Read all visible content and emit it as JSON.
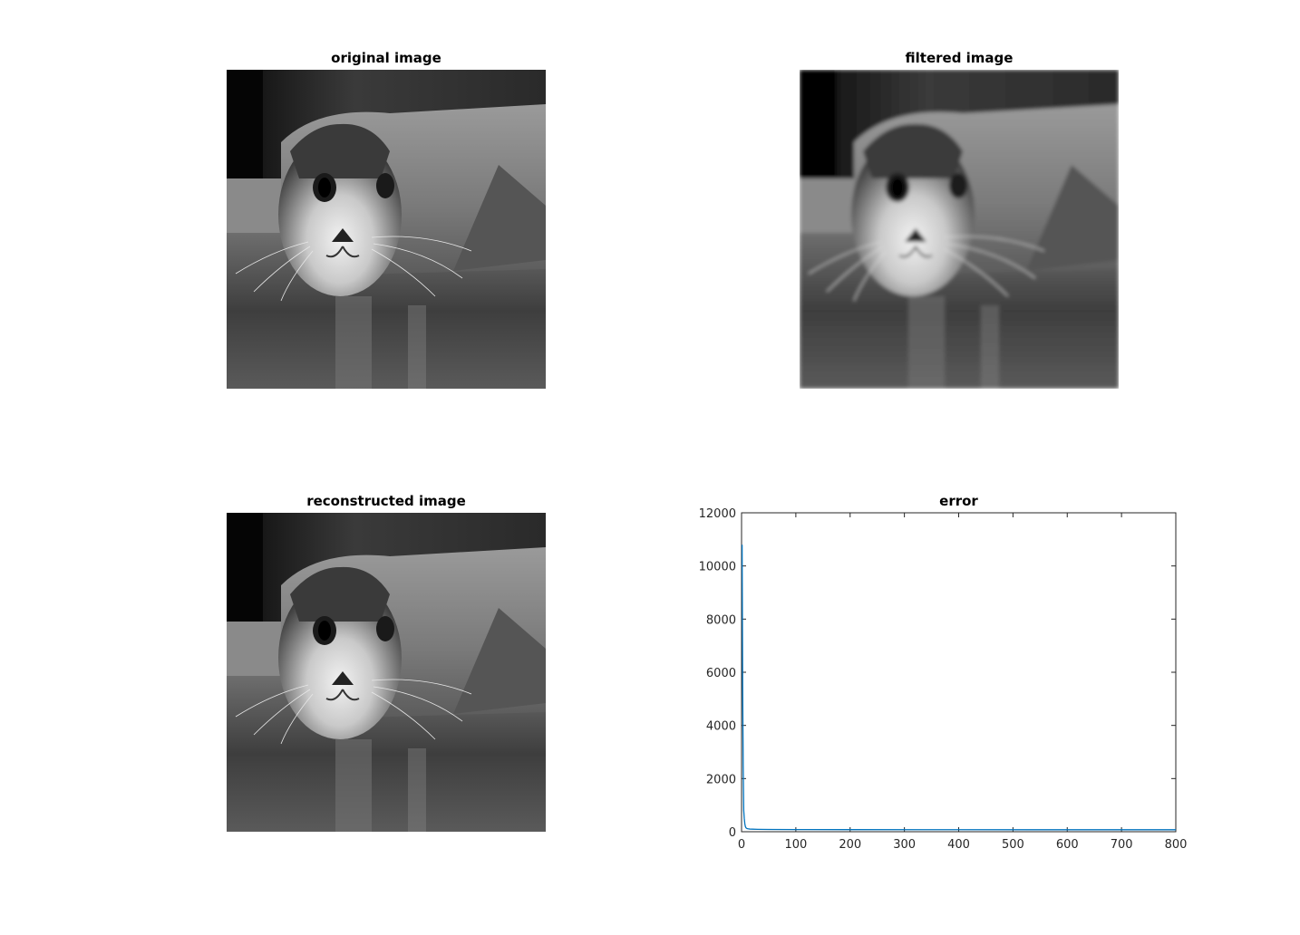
{
  "panels": {
    "original": {
      "title": "original image"
    },
    "filtered": {
      "title": "filtered image"
    },
    "reconstructed": {
      "title": "reconstructed image"
    },
    "error": {
      "title": "error"
    }
  },
  "chart_data": [
    {
      "type": "line",
      "title": "error",
      "xlabel": "",
      "ylabel": "",
      "xlim": [
        0,
        800
      ],
      "ylim": [
        0,
        12000
      ],
      "xticks": [
        0,
        100,
        200,
        300,
        400,
        500,
        600,
        700,
        800
      ],
      "yticks": [
        0,
        2000,
        4000,
        6000,
        8000,
        10000,
        12000
      ],
      "grid": false,
      "line_color": "#0072bd",
      "series": [
        {
          "x": [
            1,
            2,
            3,
            4,
            5,
            6,
            7,
            8,
            10,
            12,
            15,
            20,
            30,
            50,
            100,
            200,
            400,
            600,
            800
          ],
          "y": [
            10800,
            5500,
            2500,
            800,
            500,
            300,
            200,
            150,
            120,
            110,
            100,
            95,
            90,
            85,
            80,
            78,
            76,
            75,
            75
          ]
        }
      ]
    }
  ]
}
